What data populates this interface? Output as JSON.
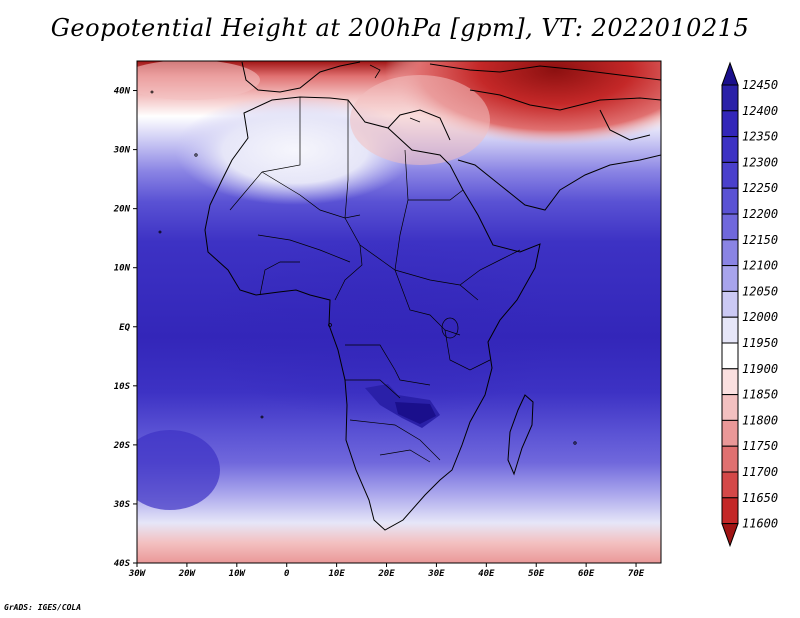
{
  "title": "Geopotential Height at 200hPa [gpm], VT: 2022010215",
  "credit": "GrADS: IGES/COLA",
  "map": {
    "lat_ticks": [
      "40N",
      "30N",
      "20N",
      "10N",
      "EQ",
      "10S",
      "20S",
      "30S",
      "40S"
    ],
    "lon_ticks": [
      "30W",
      "20W",
      "10W",
      "0",
      "10E",
      "20E",
      "30E",
      "40E",
      "50E",
      "60E",
      "70E"
    ],
    "lon_range": [
      -30,
      75
    ],
    "lat_range": [
      -40,
      45
    ]
  },
  "colorbar": {
    "levels": [
      "12450",
      "12400",
      "12350",
      "12300",
      "12250",
      "12200",
      "12150",
      "12100",
      "12050",
      "12000",
      "11950",
      "11900",
      "11850",
      "11800",
      "11750",
      "11700",
      "11650",
      "11600"
    ],
    "colors": [
      "#1a0f8c",
      "#2a20a8",
      "#3326b9",
      "#3d32c4",
      "#4a40cc",
      "#5a52d4",
      "#7068dc",
      "#8a84e4",
      "#a8a4ec",
      "#cbc9f4",
      "#e6e6f8",
      "#ffffff",
      "#fbe0e0",
      "#f3c0c0",
      "#ea9898",
      "#e07070",
      "#d44848",
      "#c42828",
      "#a01414"
    ]
  }
}
